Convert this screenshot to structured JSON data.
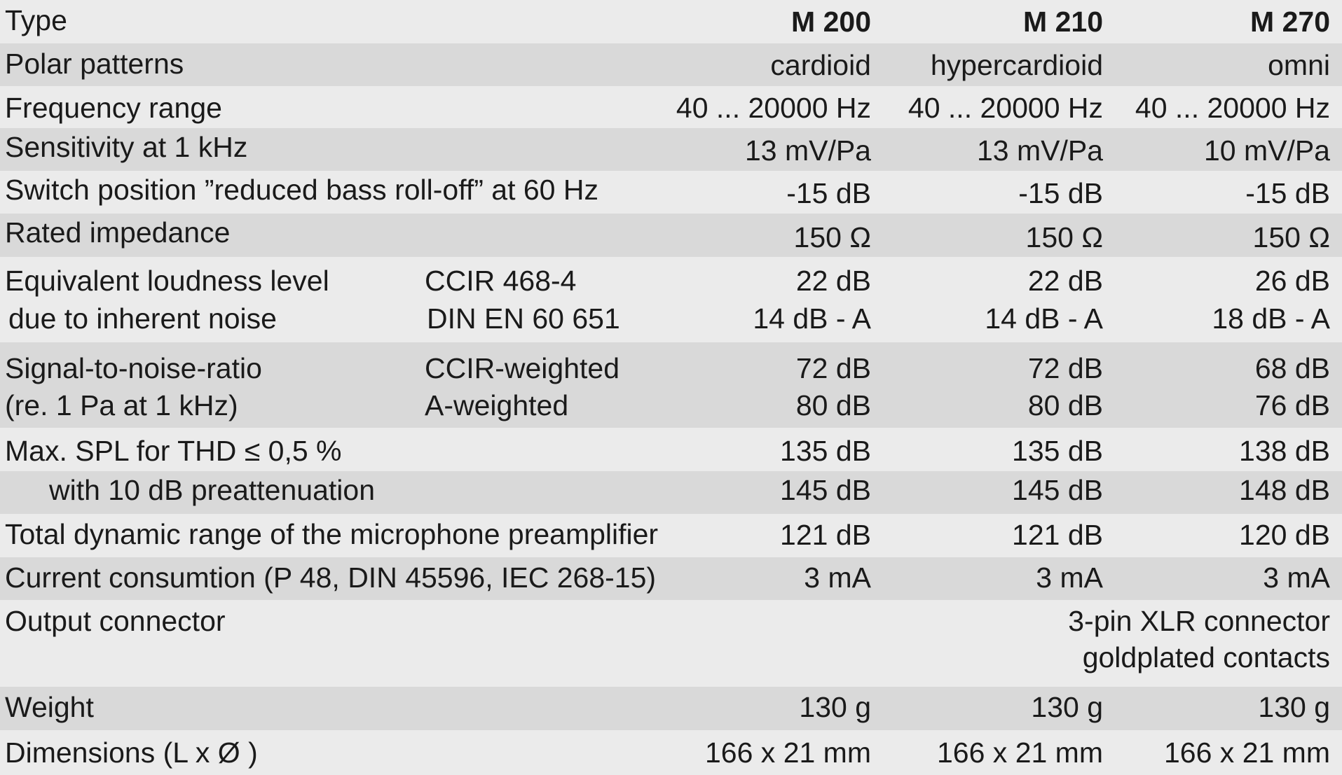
{
  "table": {
    "header": {
      "label": "Type",
      "models": [
        "M 200",
        "M 210",
        "M 270"
      ]
    },
    "rows": [
      {
        "label": "Polar patterns",
        "values": [
          "cardioid",
          "hypercardioid",
          "omni"
        ]
      },
      {
        "label": "Frequency range",
        "values": [
          "40 ... 20000 Hz",
          "40 ... 20000 Hz",
          "40 ... 20000 Hz"
        ]
      },
      {
        "label": "Sensitivity at 1 kHz",
        "values": [
          "13 mV/Pa",
          "13 mV/Pa",
          "10 mV/Pa"
        ]
      },
      {
        "label": "Switch position ”reduced bass roll-off” at 60 Hz",
        "values": [
          "-15 dB",
          "-15 dB",
          "-15 dB"
        ]
      },
      {
        "label": "Rated impedance",
        "values": [
          "150 Ω",
          "150 Ω",
          "150 Ω"
        ]
      }
    ],
    "loudness": {
      "label_line1": "Equivalent loudness level",
      "label_line2": "due to inherent noise",
      "sub_line1": "CCIR  468-4",
      "sub_line2": "DIN EN 60 651",
      "values_line1": [
        "22 dB",
        "22 dB",
        "26 dB"
      ],
      "values_line2": [
        "14 dB - A",
        "14 dB - A",
        "18 dB - A"
      ]
    },
    "snr": {
      "label_line1": "Signal-to-noise-ratio",
      "label_line2": "(re. 1 Pa at 1 kHz)",
      "sub_line1": "CCIR-weighted",
      "sub_line2": "A-weighted",
      "values_line1": [
        "72 dB",
        "72 dB",
        "68 dB"
      ],
      "values_line2": [
        "80 dB",
        "80 dB",
        "76 dB"
      ]
    },
    "max_spl": {
      "label": "Max. SPL for THD ≤ 0,5 %",
      "values": [
        "135 dB",
        "135 dB",
        "138 dB"
      ]
    },
    "max_spl_pre": {
      "label": "with 10 dB preattenuation",
      "values": [
        "145 dB",
        "145 dB",
        "148 dB"
      ]
    },
    "dynamic": {
      "label": "Total dynamic range of the microphone preamplifier",
      "values": [
        "121 dB",
        "121 dB",
        "120 dB"
      ]
    },
    "current": {
      "label": "Current consumtion (P 48, DIN 45596, IEC 268-15)",
      "values": [
        "3 mA",
        "3 mA",
        "3 mA"
      ]
    },
    "output": {
      "label": "Output connector",
      "value_line1": "3-pin XLR connector",
      "value_line2": "goldplated contacts"
    },
    "weight": {
      "label": "Weight",
      "values": [
        "130 g",
        "130 g",
        "130 g"
      ]
    },
    "dimensions": {
      "label": "Dimensions (L x Ø )",
      "values": [
        "166 x 21 mm",
        "166 x 21 mm",
        "166 x 21 mm"
      ]
    }
  }
}
